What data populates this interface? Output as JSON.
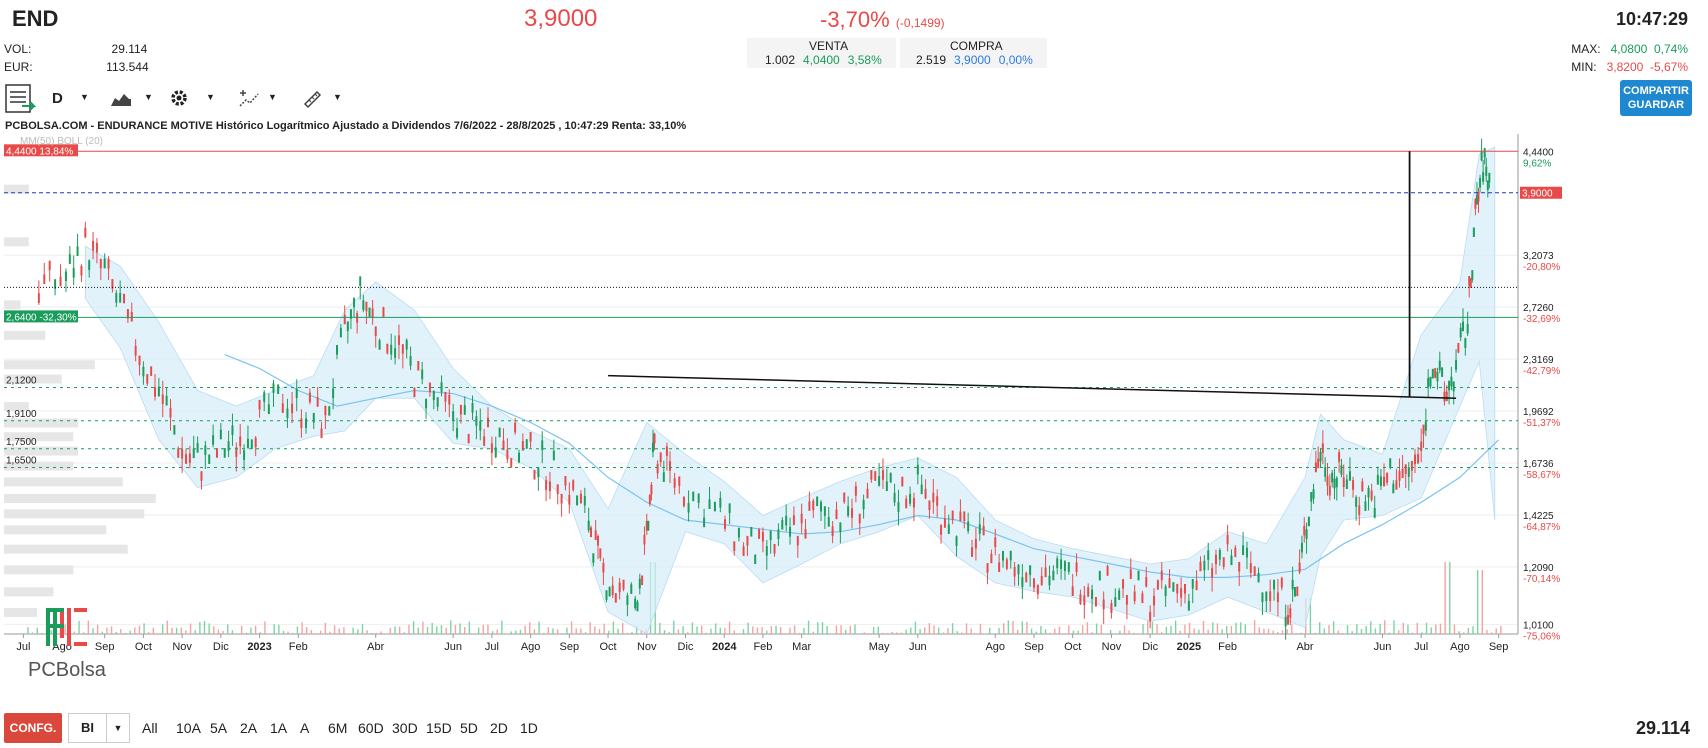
{
  "header": {
    "ticker": "END",
    "price": "3,9000",
    "change_pct": "-3,70%",
    "change_abs": "(-0,1499)",
    "time": "10:47:29",
    "vol_label": "VOL:",
    "vol_value": "29.114",
    "eur_label": "EUR:",
    "eur_value": "113.544",
    "venta_label": "VENTA",
    "venta_qty": "1.002",
    "venta_price": "4,0400",
    "venta_pct": "3,58%",
    "compra_label": "COMPRA",
    "compra_qty": "2.519",
    "compra_price": "3,9000",
    "compra_pct": "0,00%",
    "max_label": "MAX:",
    "max_value": "4,0800",
    "max_pct": "0,74%",
    "min_label": "MIN:",
    "min_value": "3,8200",
    "min_pct": "-5,67%"
  },
  "toolbar": {
    "interval": "D",
    "share_label": "COMPARTIR",
    "save_label": "GUARDAR"
  },
  "icons": [
    "notes-icon",
    "chevron-down-icon",
    "area-chart-icon",
    "gear-icon",
    "drawing-tools-icon",
    "ruler-icon",
    "pc-bolsa-logo"
  ],
  "bottom": {
    "config_label": "CONFG.",
    "chart_type": "BI",
    "periods": [
      "All",
      "10A",
      "5A",
      "2A",
      "1A",
      "A",
      "6M",
      "60D",
      "30D",
      "15D",
      "5D",
      "2D",
      "1D"
    ],
    "volume": "29.114"
  },
  "logo_text": "PCBolsa",
  "colors": {
    "up": "#1a9c5b",
    "down": "#e84a4a",
    "band": "#d6ecfa",
    "ma": "#7cc4ee",
    "accent": "#1e88d0"
  },
  "chart_data": {
    "type": "line",
    "title": "PCBOLSA.COM - ENDURANCE MOTIVE Histórico Logarítmico Ajustado a Dividendos 7/6/2022 - 28/8/2025 , 10:47:29 Renta: 33,10%",
    "overlay_label": "MM(50) BOLL (20)",
    "yscale": "log",
    "ylim": [
      0.98,
      4.6
    ],
    "y_ticks": [
      {
        "value": 4.44,
        "label": "4,4400",
        "pct": "9,62%"
      },
      {
        "value": 3.2073,
        "label": "3,2073",
        "pct": "-20,80%"
      },
      {
        "value": 2.726,
        "label": "2,7260",
        "pct": "-32,69%"
      },
      {
        "value": 2.3169,
        "label": "2,3169",
        "pct": "-42,79%"
      },
      {
        "value": 1.9692,
        "label": "1,9692",
        "pct": "-51,37%"
      },
      {
        "value": 1.6736,
        "label": "1,6736",
        "pct": "-58,67%"
      },
      {
        "value": 1.4225,
        "label": "1,4225",
        "pct": "-64,87%"
      },
      {
        "value": 1.209,
        "label": "1,2090",
        "pct": "-70,14%"
      },
      {
        "value": 1.01,
        "label": "1,0100",
        "pct": "-75,06%"
      }
    ],
    "x_ticks": [
      {
        "t": 0.5,
        "label": "Jul",
        "bold": false
      },
      {
        "t": 1.5,
        "label": "Ago",
        "bold": false
      },
      {
        "t": 2.6,
        "label": "Sep",
        "bold": false
      },
      {
        "t": 3.6,
        "label": "Oct",
        "bold": false
      },
      {
        "t": 4.6,
        "label": "Nov",
        "bold": false
      },
      {
        "t": 5.6,
        "label": "Dic",
        "bold": false
      },
      {
        "t": 6.6,
        "label": "2023",
        "bold": true
      },
      {
        "t": 7.6,
        "label": "Feb",
        "bold": false
      },
      {
        "t": 9.6,
        "label": "Abr",
        "bold": false
      },
      {
        "t": 11.6,
        "label": "Jun",
        "bold": false
      },
      {
        "t": 12.6,
        "label": "Jul",
        "bold": false
      },
      {
        "t": 13.6,
        "label": "Ago",
        "bold": false
      },
      {
        "t": 14.6,
        "label": "Sep",
        "bold": false
      },
      {
        "t": 15.6,
        "label": "Oct",
        "bold": false
      },
      {
        "t": 16.6,
        "label": "Nov",
        "bold": false
      },
      {
        "t": 17.6,
        "label": "Dic",
        "bold": false
      },
      {
        "t": 18.6,
        "label": "2024",
        "bold": true
      },
      {
        "t": 19.6,
        "label": "Feb",
        "bold": false
      },
      {
        "t": 20.6,
        "label": "Mar",
        "bold": false
      },
      {
        "t": 22.6,
        "label": "May",
        "bold": false
      },
      {
        "t": 23.6,
        "label": "Jun",
        "bold": false
      },
      {
        "t": 25.6,
        "label": "Ago",
        "bold": false
      },
      {
        "t": 26.6,
        "label": "Sep",
        "bold": false
      },
      {
        "t": 27.6,
        "label": "Oct",
        "bold": false
      },
      {
        "t": 28.6,
        "label": "Nov",
        "bold": false
      },
      {
        "t": 29.6,
        "label": "Dic",
        "bold": false
      },
      {
        "t": 30.6,
        "label": "2025",
        "bold": true
      },
      {
        "t": 31.6,
        "label": "Feb",
        "bold": false
      },
      {
        "t": 33.6,
        "label": "Abr",
        "bold": false
      },
      {
        "t": 35.6,
        "label": "Jun",
        "bold": false
      },
      {
        "t": 36.6,
        "label": "Jul",
        "bold": false
      },
      {
        "t": 37.6,
        "label": "Ago",
        "bold": false
      },
      {
        "t": 38.6,
        "label": "Sep",
        "bold": false
      }
    ],
    "price_path": [
      [
        0.9,
        2.9
      ],
      [
        1.6,
        3.0
      ],
      [
        2.1,
        3.3
      ],
      [
        2.6,
        3.05
      ],
      [
        3.1,
        2.65
      ],
      [
        3.6,
        2.3
      ],
      [
        4.1,
        2.05
      ],
      [
        4.6,
        1.72
      ],
      [
        5.1,
        1.68
      ],
      [
        5.6,
        1.75
      ],
      [
        6.1,
        1.8
      ],
      [
        6.6,
        1.92
      ],
      [
        7.2,
        2.05
      ],
      [
        7.8,
        1.98
      ],
      [
        8.3,
        1.9
      ],
      [
        8.8,
        2.5
      ],
      [
        9.2,
        2.82
      ],
      [
        9.6,
        2.6
      ],
      [
        10.1,
        2.45
      ],
      [
        10.6,
        2.2
      ],
      [
        11.1,
        2.05
      ],
      [
        11.6,
        1.95
      ],
      [
        12.1,
        1.88
      ],
      [
        12.6,
        1.85
      ],
      [
        13.1,
        1.78
      ],
      [
        13.6,
        1.72
      ],
      [
        14.1,
        1.64
      ],
      [
        14.6,
        1.55
      ],
      [
        15.1,
        1.4
      ],
      [
        15.4,
        1.2
      ],
      [
        15.8,
        1.12
      ],
      [
        16.3,
        1.08
      ],
      [
        16.6,
        1.3
      ],
      [
        16.8,
        1.75
      ],
      [
        17.2,
        1.62
      ],
      [
        17.8,
        1.5
      ],
      [
        18.5,
        1.42
      ],
      [
        19.1,
        1.3
      ],
      [
        19.6,
        1.26
      ],
      [
        20.1,
        1.32
      ],
      [
        20.6,
        1.38
      ],
      [
        21.1,
        1.45
      ],
      [
        21.6,
        1.42
      ],
      [
        22.1,
        1.48
      ],
      [
        22.6,
        1.55
      ],
      [
        23.1,
        1.52
      ],
      [
        23.6,
        1.56
      ],
      [
        24.1,
        1.46
      ],
      [
        24.6,
        1.38
      ],
      [
        25.1,
        1.3
      ],
      [
        25.6,
        1.26
      ],
      [
        26.1,
        1.22
      ],
      [
        26.6,
        1.2
      ],
      [
        27.1,
        1.18
      ],
      [
        27.6,
        1.17
      ],
      [
        28.1,
        1.15
      ],
      [
        28.6,
        1.13
      ],
      [
        29.1,
        1.12
      ],
      [
        29.6,
        1.1
      ],
      [
        30.1,
        1.12
      ],
      [
        30.6,
        1.13
      ],
      [
        31.1,
        1.2
      ],
      [
        31.6,
        1.25
      ],
      [
        32.1,
        1.22
      ],
      [
        32.6,
        1.15
      ],
      [
        33.1,
        1.08
      ],
      [
        33.4,
        1.12
      ],
      [
        33.7,
        1.45
      ],
      [
        34.0,
        1.75
      ],
      [
        34.3,
        1.6
      ],
      [
        34.6,
        1.62
      ],
      [
        35.0,
        1.52
      ],
      [
        35.4,
        1.5
      ],
      [
        35.8,
        1.62
      ],
      [
        36.2,
        1.6
      ],
      [
        36.6,
        1.72
      ],
      [
        36.9,
        2.35
      ],
      [
        37.2,
        2.05
      ],
      [
        37.5,
        2.25
      ],
      [
        37.8,
        2.6
      ],
      [
        38.0,
        3.6
      ],
      [
        38.2,
        4.3
      ],
      [
        38.4,
        3.95
      ]
    ],
    "boll_upper": [
      [
        2.1,
        3.3
      ],
      [
        3.0,
        3.1
      ],
      [
        4.0,
        2.6
      ],
      [
        5.0,
        2.1
      ],
      [
        6.0,
        2.0
      ],
      [
        7.0,
        2.1
      ],
      [
        8.0,
        2.2
      ],
      [
        8.8,
        2.7
      ],
      [
        9.6,
        2.95
      ],
      [
        10.6,
        2.7
      ],
      [
        11.6,
        2.25
      ],
      [
        12.6,
        2.0
      ],
      [
        13.6,
        1.85
      ],
      [
        14.6,
        1.75
      ],
      [
        15.6,
        1.45
      ],
      [
        16.6,
        1.9
      ],
      [
        17.6,
        1.72
      ],
      [
        18.6,
        1.58
      ],
      [
        19.6,
        1.42
      ],
      [
        20.6,
        1.5
      ],
      [
        21.6,
        1.58
      ],
      [
        22.6,
        1.65
      ],
      [
        23.6,
        1.7
      ],
      [
        24.6,
        1.6
      ],
      [
        25.6,
        1.4
      ],
      [
        26.6,
        1.32
      ],
      [
        27.6,
        1.28
      ],
      [
        28.6,
        1.25
      ],
      [
        29.6,
        1.22
      ],
      [
        30.6,
        1.24
      ],
      [
        31.6,
        1.35
      ],
      [
        32.6,
        1.3
      ],
      [
        33.6,
        1.6
      ],
      [
        34.0,
        1.95
      ],
      [
        34.6,
        1.8
      ],
      [
        35.6,
        1.72
      ],
      [
        36.6,
        2.5
      ],
      [
        37.6,
        2.95
      ],
      [
        38.1,
        4.4
      ],
      [
        38.5,
        4.5
      ]
    ],
    "boll_lower": [
      [
        2.1,
        2.8
      ],
      [
        3.0,
        2.4
      ],
      [
        4.0,
        1.8
      ],
      [
        5.0,
        1.55
      ],
      [
        6.0,
        1.6
      ],
      [
        7.0,
        1.75
      ],
      [
        8.0,
        1.82
      ],
      [
        8.8,
        1.85
      ],
      [
        9.6,
        2.05
      ],
      [
        10.6,
        2.05
      ],
      [
        11.6,
        1.78
      ],
      [
        12.6,
        1.75
      ],
      [
        13.6,
        1.65
      ],
      [
        14.6,
        1.48
      ],
      [
        15.6,
        1.05
      ],
      [
        16.6,
        0.98
      ],
      [
        17.6,
        1.35
      ],
      [
        18.6,
        1.3
      ],
      [
        19.6,
        1.15
      ],
      [
        20.6,
        1.22
      ],
      [
        21.6,
        1.3
      ],
      [
        22.6,
        1.35
      ],
      [
        23.6,
        1.42
      ],
      [
        24.6,
        1.25
      ],
      [
        25.6,
        1.15
      ],
      [
        26.6,
        1.12
      ],
      [
        27.6,
        1.1
      ],
      [
        28.6,
        1.06
      ],
      [
        29.6,
        1.02
      ],
      [
        30.6,
        1.04
      ],
      [
        31.6,
        1.1
      ],
      [
        32.6,
        1.05
      ],
      [
        33.6,
        1.0
      ],
      [
        34.0,
        1.25
      ],
      [
        34.6,
        1.4
      ],
      [
        35.6,
        1.42
      ],
      [
        36.6,
        1.5
      ],
      [
        37.6,
        2.0
      ],
      [
        38.1,
        2.3
      ],
      [
        38.5,
        1.4
      ]
    ],
    "ma50": [
      [
        5.7,
        2.35
      ],
      [
        6.6,
        2.25
      ],
      [
        7.6,
        2.1
      ],
      [
        8.6,
        2.0
      ],
      [
        9.6,
        2.05
      ],
      [
        10.6,
        2.1
      ],
      [
        11.6,
        2.08
      ],
      [
        12.6,
        2.0
      ],
      [
        13.6,
        1.9
      ],
      [
        14.6,
        1.78
      ],
      [
        15.6,
        1.6
      ],
      [
        16.6,
        1.48
      ],
      [
        17.6,
        1.4
      ],
      [
        18.6,
        1.38
      ],
      [
        19.6,
        1.36
      ],
      [
        20.6,
        1.34
      ],
      [
        21.6,
        1.35
      ],
      [
        22.6,
        1.38
      ],
      [
        23.6,
        1.42
      ],
      [
        24.6,
        1.4
      ],
      [
        25.6,
        1.34
      ],
      [
        26.6,
        1.28
      ],
      [
        27.6,
        1.25
      ],
      [
        28.6,
        1.22
      ],
      [
        29.6,
        1.19
      ],
      [
        30.6,
        1.17
      ],
      [
        31.6,
        1.17
      ],
      [
        32.6,
        1.18
      ],
      [
        33.6,
        1.2
      ],
      [
        34.6,
        1.3
      ],
      [
        35.6,
        1.38
      ],
      [
        36.6,
        1.48
      ],
      [
        37.6,
        1.6
      ],
      [
        38.6,
        1.8
      ]
    ],
    "horizontal_levels": [
      {
        "value": 4.44,
        "label": "4,4400",
        "pct": "13,84%",
        "style": "red-solid"
      },
      {
        "value": 3.9,
        "label": "3,9000",
        "style": "blue-dashed"
      },
      {
        "value": 2.9,
        "label": "",
        "style": "black-dotted"
      },
      {
        "value": 2.64,
        "label": "2,6400",
        "pct": "-32,30%",
        "style": "green-solid"
      },
      {
        "value": 2.12,
        "label": "2,1200",
        "style": "green-dashed"
      },
      {
        "value": 1.91,
        "label": "1,9100",
        "style": "green-dashed"
      },
      {
        "value": 1.75,
        "label": "1,7500",
        "style": "green-dashed"
      },
      {
        "value": 1.65,
        "label": "1,6500",
        "style": "green-dashed"
      }
    ],
    "trendline": [
      [
        15.6,
        2.2
      ],
      [
        37.5,
        2.05
      ]
    ],
    "vertical_marker": {
      "t": 36.3,
      "from": 4.44,
      "to": 2.06
    },
    "volume_profile": [
      {
        "price": 3.95,
        "size": 0.15
      },
      {
        "price": 3.35,
        "size": 0.15
      },
      {
        "price": 2.75,
        "size": 0.1
      },
      {
        "price": 2.5,
        "size": 0.25
      },
      {
        "price": 2.28,
        "size": 0.55
      },
      {
        "price": 2.18,
        "size": 0.35
      },
      {
        "price": 2.0,
        "size": 0.15
      },
      {
        "price": 1.9,
        "size": 0.45
      },
      {
        "price": 1.82,
        "size": 0.42
      },
      {
        "price": 1.74,
        "size": 0.45
      },
      {
        "price": 1.66,
        "size": 0.42
      },
      {
        "price": 1.58,
        "size": 0.72
      },
      {
        "price": 1.5,
        "size": 0.92
      },
      {
        "price": 1.43,
        "size": 0.85
      },
      {
        "price": 1.36,
        "size": 0.62
      },
      {
        "price": 1.28,
        "size": 0.75
      },
      {
        "price": 1.2,
        "size": 0.42
      },
      {
        "price": 1.12,
        "size": 0.3
      },
      {
        "price": 1.05,
        "size": 0.2
      }
    ],
    "volume_bars_peak": [
      [
        16.7,
        0.9
      ],
      [
        33.7,
        0.45
      ],
      [
        37.3,
        0.9
      ],
      [
        38.1,
        0.8
      ]
    ]
  }
}
